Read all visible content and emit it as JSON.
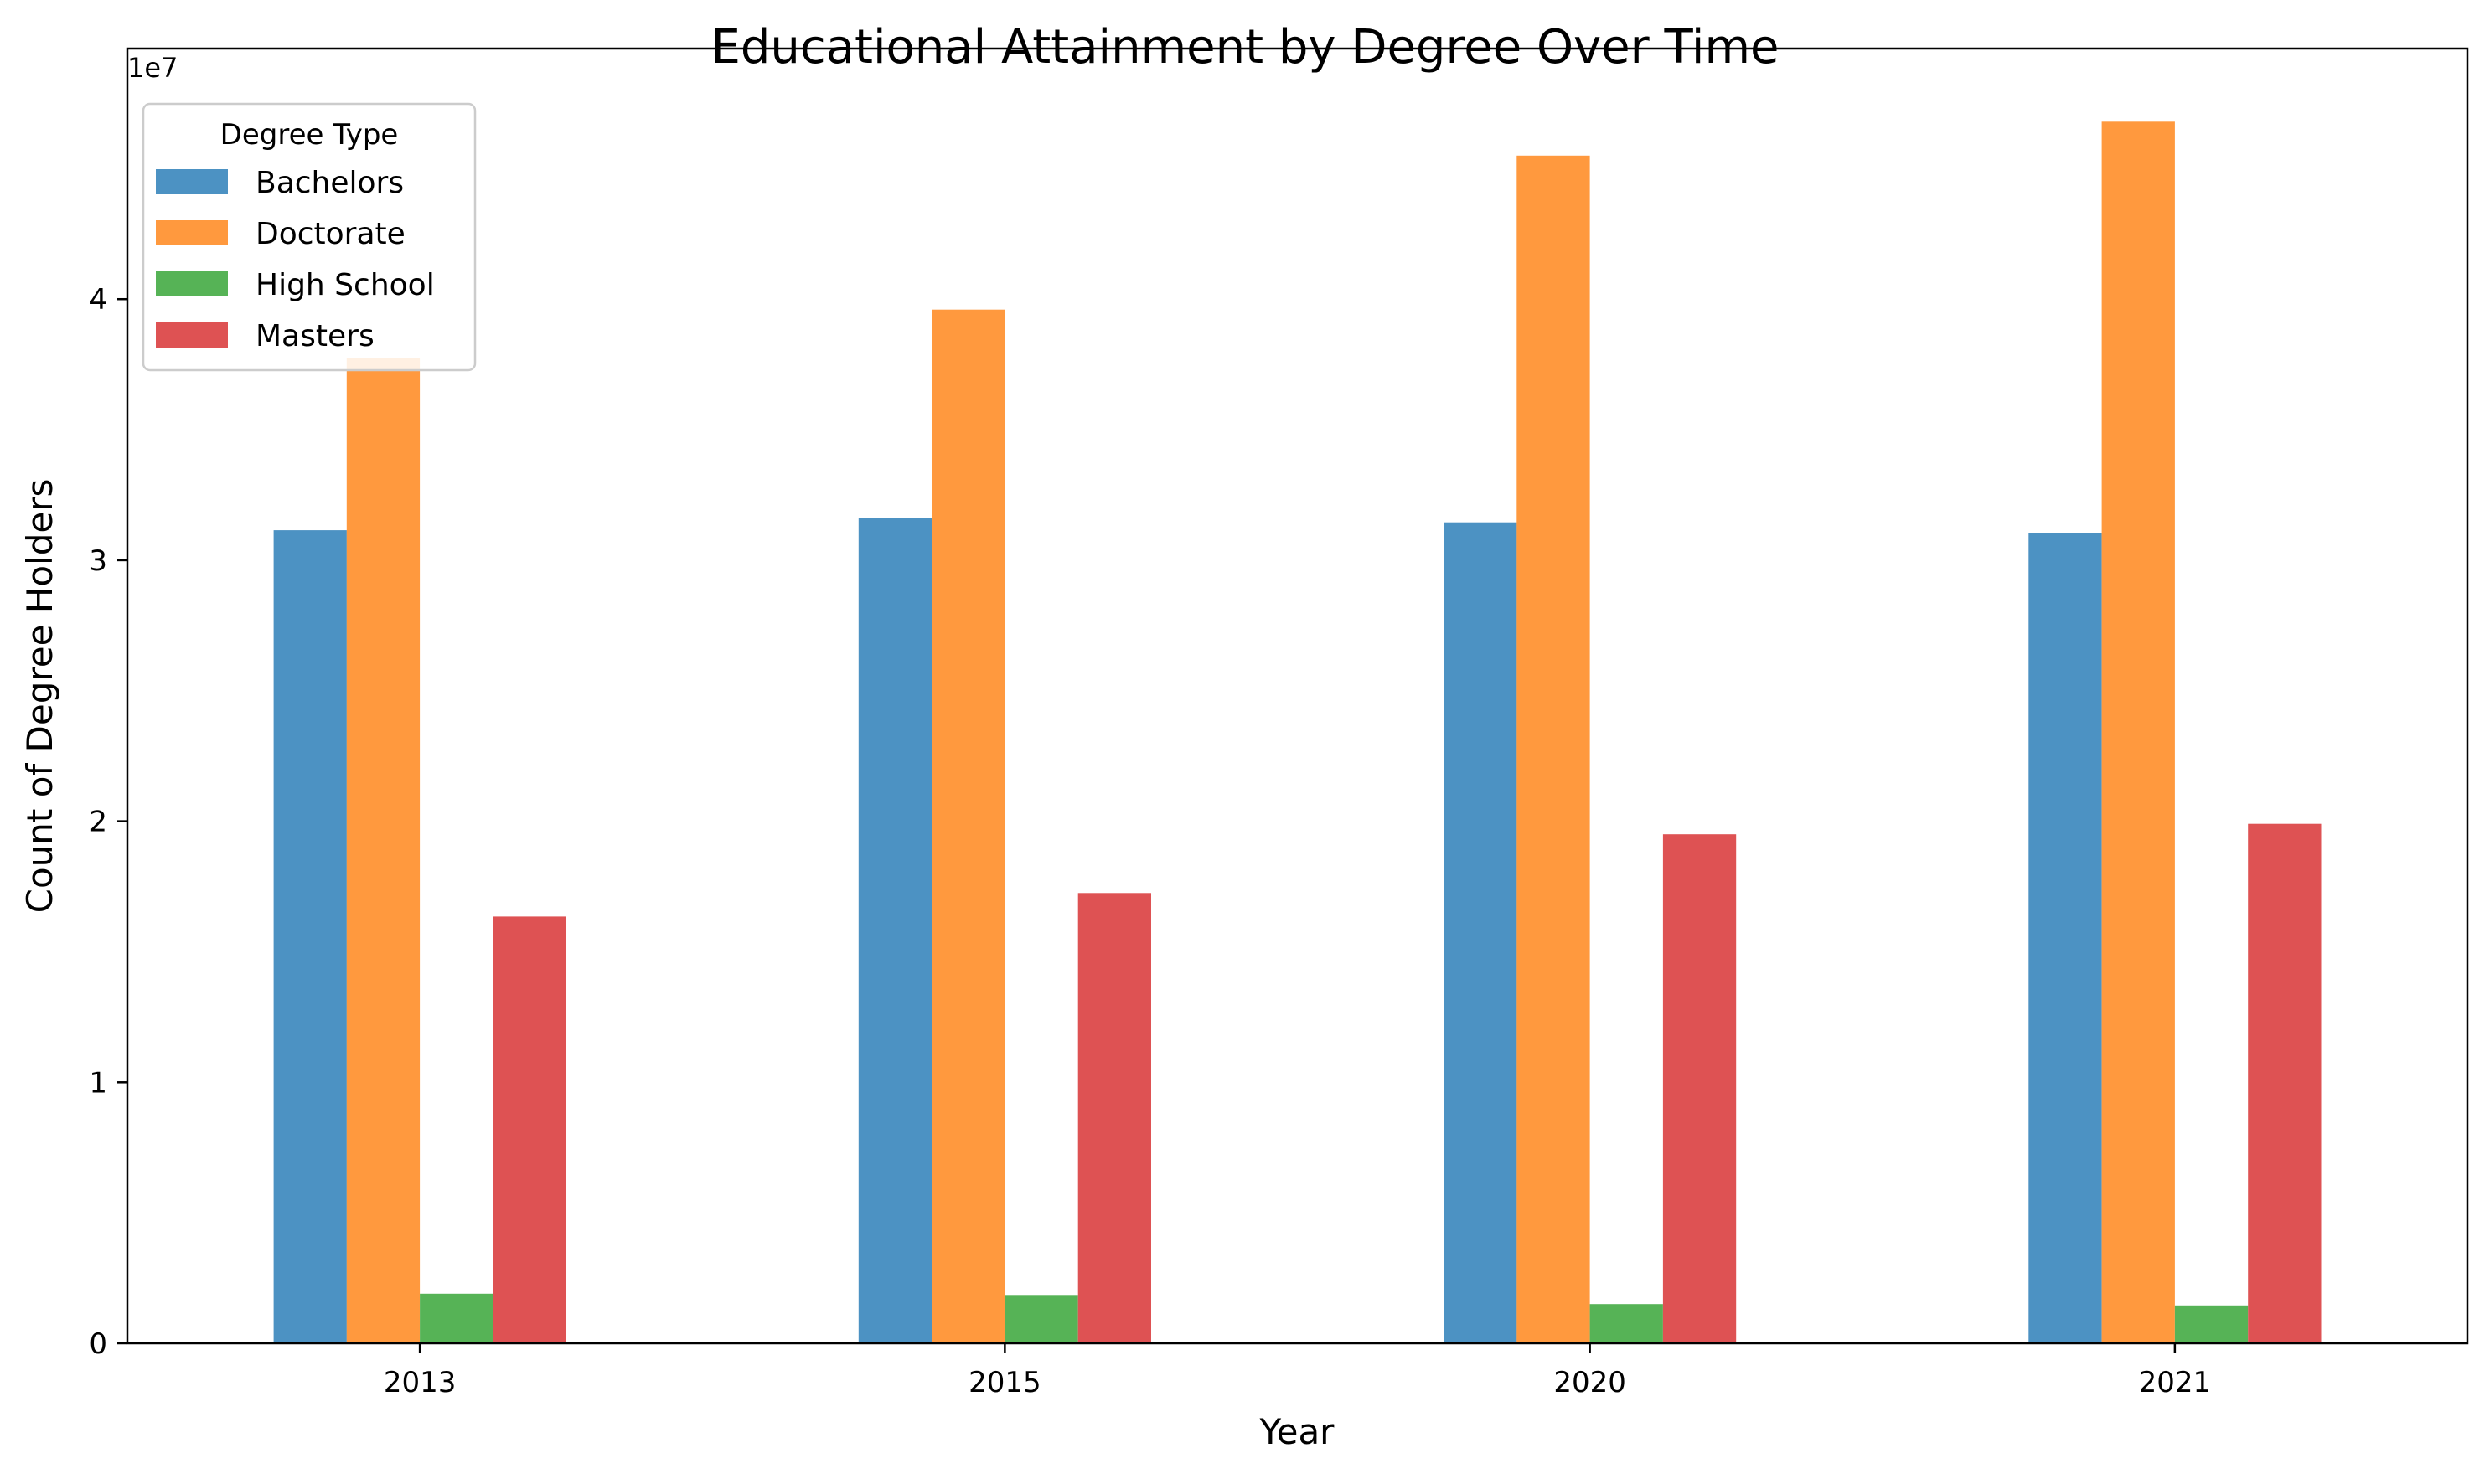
{
  "chart_data": {
    "type": "bar",
    "title": "Educational Attainment by Degree Over Time",
    "xlabel": "Year",
    "ylabel": "Count of Degree Holders",
    "y_offset_label": "1e7",
    "categories": [
      "2013",
      "2015",
      "2020",
      "2021"
    ],
    "ylim": [
      0,
      49600000
    ],
    "yticks": [
      0,
      10000000,
      20000000,
      30000000,
      40000000
    ],
    "ytick_labels": [
      "0",
      "1",
      "2",
      "3",
      "4"
    ],
    "grid": false,
    "legend": {
      "title": "Degree Type",
      "placement": "top-left"
    },
    "series": [
      {
        "name": "Bachelors",
        "color": "#4c92c3",
        "values": [
          31150000,
          31600000,
          31450000,
          31050000
        ]
      },
      {
        "name": "Doctorate",
        "color": "#ff993e",
        "values": [
          37750000,
          39600000,
          45500000,
          46800000
        ]
      },
      {
        "name": "High School",
        "color": "#56b356",
        "values": [
          1900000,
          1850000,
          1500000,
          1450000
        ]
      },
      {
        "name": "Masters",
        "color": "#de5253",
        "values": [
          16350000,
          17250000,
          19500000,
          19900000
        ]
      }
    ]
  }
}
